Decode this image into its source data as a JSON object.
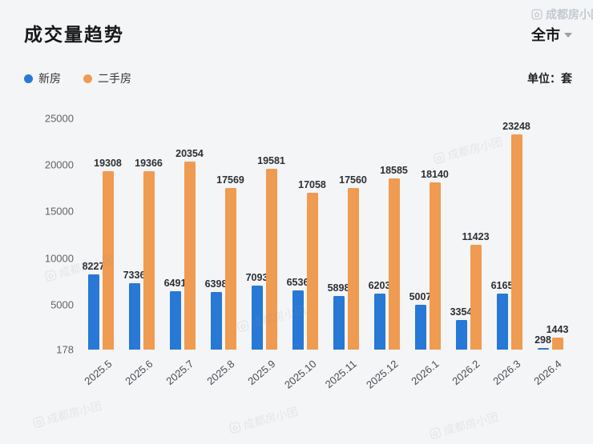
{
  "header": {
    "title": "成交量趋势",
    "scope": "全市",
    "unit_label": "单位：套"
  },
  "legend": [
    {
      "key": "new-homes",
      "label": "新房",
      "color": "#2878d5"
    },
    {
      "key": "resale-homes",
      "label": "二手房",
      "color": "#ef9b51"
    }
  ],
  "watermark": {
    "text": "成都房小团"
  },
  "chart_data": {
    "type": "bar",
    "title": "成交量趋势",
    "categories": [
      "2025.5",
      "2025.6",
      "2025.7",
      "2025.8",
      "2025.9",
      "2025.10",
      "2025.11",
      "2025.12",
      "2026.1",
      "2026.2",
      "2026.3",
      "2026.4"
    ],
    "series": [
      {
        "name": "新房",
        "key": "new-homes",
        "color": "#2878d5",
        "values": [
          8227,
          7336,
          6491,
          6398,
          7093,
          6536,
          5898,
          6203,
          5007,
          3354,
          6165,
          298
        ]
      },
      {
        "name": "二手房",
        "key": "resale-homes",
        "color": "#ef9b51",
        "values": [
          19308,
          19366,
          20354,
          17569,
          19581,
          17058,
          17560,
          18585,
          18140,
          11423,
          23248,
          1443
        ]
      }
    ],
    "y_ticks": [
      25000,
      20000,
      15000,
      10000,
      5000,
      178
    ],
    "ylim": [
      178,
      25000
    ],
    "xlabel": "",
    "ylabel": "",
    "unit": "套",
    "legend_position": "top-left",
    "grid": false,
    "bar_labels": true
  }
}
